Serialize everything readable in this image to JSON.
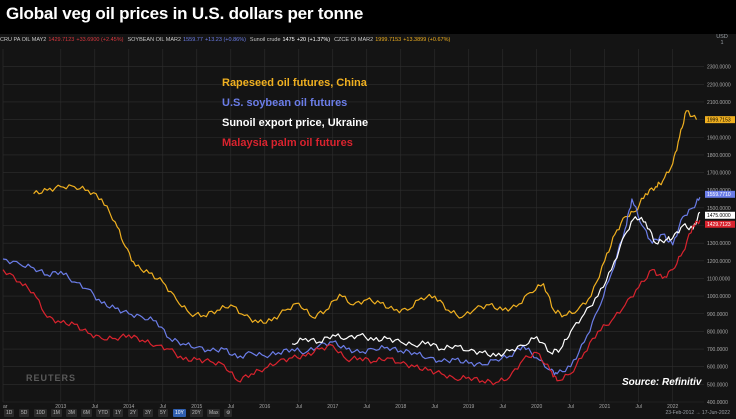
{
  "title": "Global veg oil prices in U.S. dollars per tonne",
  "infobar": [
    {
      "label": "CRU PA OIL MAY2",
      "value": "1429.7123",
      "change": "+33.6900 (+2.45%)",
      "color": "#d9373e"
    },
    {
      "label": "SOYBEAN OIL MAR2",
      "value": "1559.77",
      "change": "+13.23 (+0.86%)",
      "color": "#6b7de8"
    },
    {
      "label": "Sunoil crude",
      "value": "1475",
      "change": "+20 (+1.37%)",
      "color": "#ffffff"
    },
    {
      "label": "CZCE OI MAR2",
      "value": "1999.7153",
      "change": "+13.3899 (+0.67%)",
      "color": "#f0b020"
    }
  ],
  "unit_selector": {
    "currency": "USD",
    "scale": "1"
  },
  "legend": [
    {
      "text": "Rapeseed oil futures, China",
      "color": "#f0b020"
    },
    {
      "text": "U.S. soybean oil futures",
      "color": "#6b7de8"
    },
    {
      "text": "Sunoil export price, Ukraine",
      "color": "#ffffff"
    },
    {
      "text": "Malaysia palm oil futures",
      "color": "#d9232e"
    }
  ],
  "source": "Source: Refinitiv",
  "watermark": "REUTERS",
  "range_buttons": [
    "1D",
    "5D",
    "10D",
    "1M",
    "3M",
    "6M",
    "YTD",
    "1Y",
    "2Y",
    "3Y",
    "5Y",
    "10Y",
    "20Y",
    "Max"
  ],
  "active_range": "10Y",
  "date_range": "23-Feb-2012 → 17-Jun-2022",
  "colors": {
    "rapeseed": "#f0b020",
    "soybean": "#6b7de8",
    "sunoil": "#ffffff",
    "palm": "#d9232e",
    "background": "#141414",
    "grid": "#2e2e2e"
  },
  "chart_data": {
    "type": "line",
    "x_unit": "year",
    "xlim": [
      2012.15,
      2022.46
    ],
    "ylim": [
      400,
      2400
    ],
    "yticks": [
      400,
      500,
      600,
      700,
      800,
      900,
      1000,
      1100,
      1200,
      1300,
      1400,
      1500,
      1600,
      1700,
      1800,
      1900,
      2000,
      2100,
      2200,
      2300
    ],
    "ytick_labels": [
      "400.0000",
      "500.0000",
      "600.0000",
      "700.0000",
      "800.0000",
      "900.0000",
      "1000.0000",
      "1100.0000",
      "1200.0000",
      "1300.0000",
      "1400.0000",
      "1500.0000",
      "1600.0000",
      "1700.0000",
      "1800.0000",
      "1900.0000",
      "2000.0000",
      "2100.0000",
      "2200.0000",
      "2300.0000"
    ],
    "xticks": [
      {
        "x": 2012.15,
        "label": "ar"
      },
      {
        "x": 2013.0,
        "label": "2013"
      },
      {
        "x": 2013.5,
        "label": "Jul"
      },
      {
        "x": 2014.0,
        "label": "2014"
      },
      {
        "x": 2014.5,
        "label": "Jul"
      },
      {
        "x": 2015.0,
        "label": "2015"
      },
      {
        "x": 2015.5,
        "label": "Jul"
      },
      {
        "x": 2016.0,
        "label": "2016"
      },
      {
        "x": 2016.5,
        "label": "Jul"
      },
      {
        "x": 2017.0,
        "label": "2017"
      },
      {
        "x": 2017.5,
        "label": "Jul"
      },
      {
        "x": 2018.0,
        "label": "2018"
      },
      {
        "x": 2018.5,
        "label": "Jul"
      },
      {
        "x": 2019.0,
        "label": "2019"
      },
      {
        "x": 2019.5,
        "label": "Jul"
      },
      {
        "x": 2020.0,
        "label": "2020"
      },
      {
        "x": 2020.5,
        "label": "Jul"
      },
      {
        "x": 2021.0,
        "label": "2021"
      },
      {
        "x": 2021.5,
        "label": "Jul"
      },
      {
        "x": 2022.0,
        "label": "2022"
      }
    ],
    "grid": true,
    "last_value_tags": [
      {
        "series": "Rapeseed oil futures, China",
        "value": 1999.7153,
        "label": "1999.7153"
      },
      {
        "series": "U.S. soybean oil futures",
        "value": 1559.77,
        "label": "1559.7710"
      },
      {
        "series": "Sunoil export price, Ukraine",
        "value": 1475,
        "label": "1475.0000"
      },
      {
        "series": "Malaysia palm oil futures",
        "value": 1429.7123,
        "label": "1429.7123"
      }
    ],
    "series": [
      {
        "name": "Rapeseed oil futures, China",
        "x": [
          2012.6,
          2012.8,
          2013.0,
          2013.2,
          2013.4,
          2013.6,
          2013.8,
          2013.95,
          2014.1,
          2014.3,
          2014.5,
          2014.7,
          2014.9,
          2015.1,
          2015.3,
          2015.5,
          2015.7,
          2015.9,
          2016.1,
          2016.3,
          2016.5,
          2016.7,
          2016.9,
          2017.1,
          2017.3,
          2017.5,
          2017.7,
          2017.9,
          2018.1,
          2018.3,
          2018.5,
          2018.7,
          2018.9,
          2019.1,
          2019.3,
          2019.5,
          2019.7,
          2019.9,
          2020.1,
          2020.25,
          2020.4,
          2020.6,
          2020.8,
          2021.0,
          2021.15,
          2021.3,
          2021.45,
          2021.6,
          2021.75,
          2021.85,
          2022.0,
          2022.1,
          2022.2,
          2022.35
        ],
        "values": [
          1580,
          1600,
          1620,
          1620,
          1600,
          1550,
          1420,
          1280,
          1170,
          1130,
          1080,
          980,
          900,
          890,
          920,
          950,
          890,
          850,
          860,
          920,
          960,
          880,
          920,
          1010,
          950,
          980,
          960,
          920,
          920,
          990,
          1000,
          920,
          880,
          930,
          950,
          920,
          940,
          1020,
          1070,
          920,
          890,
          920,
          1000,
          1200,
          1350,
          1450,
          1480,
          1580,
          1620,
          1650,
          1750,
          1900,
          2050,
          2000
        ]
      },
      {
        "name": "U.S. soybean oil futures",
        "x": [
          2012.15,
          2012.4,
          2012.6,
          2012.8,
          2013.0,
          2013.2,
          2013.4,
          2013.6,
          2013.8,
          2014.0,
          2014.2,
          2014.4,
          2014.6,
          2014.8,
          2015.0,
          2015.2,
          2015.4,
          2015.6,
          2015.8,
          2016.0,
          2016.2,
          2016.4,
          2016.6,
          2016.8,
          2017.0,
          2017.2,
          2017.4,
          2017.6,
          2017.8,
          2018.0,
          2018.2,
          2018.4,
          2018.6,
          2018.8,
          2019.0,
          2019.2,
          2019.4,
          2019.6,
          2019.8,
          2020.0,
          2020.2,
          2020.3,
          2020.5,
          2020.7,
          2020.9,
          2021.1,
          2021.3,
          2021.4,
          2021.55,
          2021.7,
          2021.85,
          2022.0,
          2022.15,
          2022.3,
          2022.4
        ],
        "values": [
          1210,
          1180,
          1160,
          1120,
          1140,
          1080,
          1040,
          960,
          930,
          900,
          880,
          860,
          760,
          730,
          710,
          690,
          700,
          650,
          680,
          660,
          680,
          700,
          680,
          720,
          740,
          700,
          680,
          700,
          710,
          690,
          680,
          650,
          630,
          640,
          620,
          610,
          640,
          660,
          720,
          650,
          580,
          560,
          600,
          740,
          920,
          1130,
          1380,
          1550,
          1400,
          1300,
          1350,
          1290,
          1450,
          1500,
          1560
        ]
      },
      {
        "name": "Sunoil export price, Ukraine",
        "x": [
          2016.4,
          2016.6,
          2016.8,
          2017.0,
          2017.2,
          2017.4,
          2017.6,
          2017.8,
          2018.0,
          2018.2,
          2018.4,
          2018.6,
          2018.8,
          2019.0,
          2019.2,
          2019.4,
          2019.6,
          2019.8,
          2020.0,
          2020.2,
          2020.35,
          2020.5,
          2020.7,
          2020.9,
          2021.1,
          2021.3,
          2021.45,
          2021.6,
          2021.75,
          2021.9,
          2022.0,
          2022.15,
          2022.3,
          2022.4
        ],
        "values": [
          730,
          760,
          740,
          780,
          760,
          780,
          750,
          760,
          740,
          720,
          740,
          700,
          720,
          690,
          680,
          660,
          690,
          720,
          770,
          680,
          700,
          800,
          900,
          1000,
          1150,
          1350,
          1450,
          1420,
          1300,
          1320,
          1330,
          1400,
          1380,
          1475
        ]
      },
      {
        "name": "Malaysia palm oil futures",
        "x": [
          2012.15,
          2012.4,
          2012.6,
          2012.8,
          2013.0,
          2013.2,
          2013.4,
          2013.6,
          2013.8,
          2014.0,
          2014.2,
          2014.4,
          2014.6,
          2014.8,
          2015.0,
          2015.2,
          2015.4,
          2015.6,
          2015.8,
          2016.0,
          2016.2,
          2016.4,
          2016.6,
          2016.8,
          2017.0,
          2017.2,
          2017.4,
          2017.6,
          2017.8,
          2018.0,
          2018.2,
          2018.4,
          2018.6,
          2018.8,
          2019.0,
          2019.2,
          2019.4,
          2019.6,
          2019.8,
          2020.0,
          2020.2,
          2020.3,
          2020.5,
          2020.7,
          2020.9,
          2021.1,
          2021.3,
          2021.5,
          2021.7,
          2021.85,
          2022.0,
          2022.15,
          2022.3,
          2022.4
        ],
        "values": [
          1150,
          1080,
          1020,
          880,
          850,
          840,
          790,
          760,
          760,
          780,
          750,
          720,
          700,
          640,
          640,
          630,
          610,
          520,
          560,
          590,
          630,
          650,
          660,
          700,
          720,
          640,
          650,
          630,
          650,
          620,
          600,
          580,
          560,
          530,
          540,
          520,
          510,
          540,
          640,
          680,
          580,
          520,
          560,
          680,
          800,
          860,
          950,
          1050,
          1150,
          1100,
          1150,
          1250,
          1400,
          1430
        ]
      }
    ]
  }
}
